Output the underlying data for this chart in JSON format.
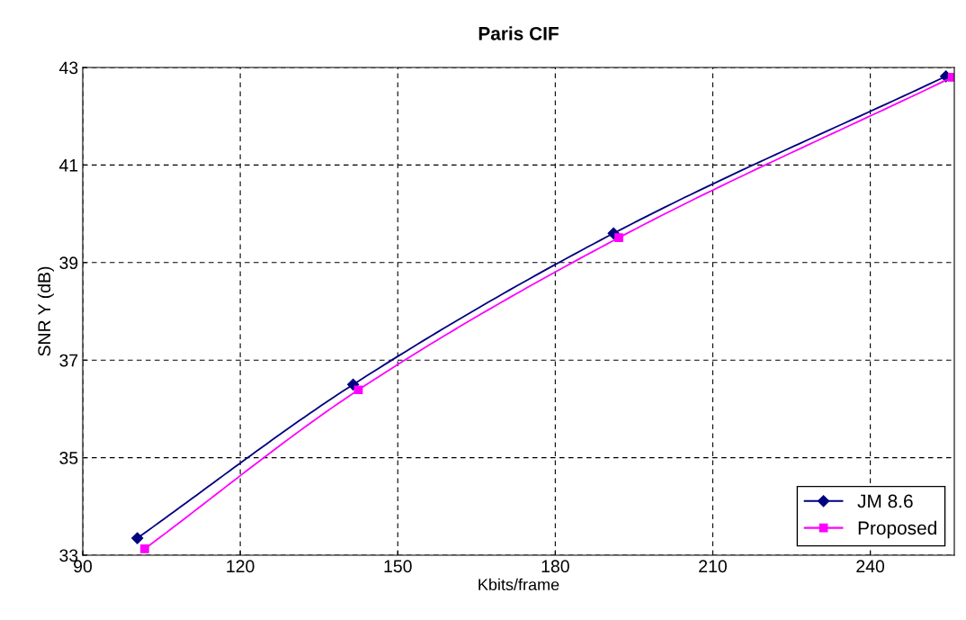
{
  "chart_data": {
    "type": "line",
    "title": "Paris CIF",
    "xlabel": "Kbits/frame",
    "ylabel": "SNR Y (dB)",
    "series": [
      {
        "name": "JM 8.6",
        "color": "#000080",
        "marker": "diamond",
        "x": [
          100.4,
          141.5,
          191.1,
          254.4
        ],
        "values": [
          33.35,
          36.5,
          39.6,
          42.82
        ]
      },
      {
        "name": "Proposed",
        "color": "#ff00ff",
        "marker": "square",
        "x": [
          101.8,
          142.5,
          192.1,
          255.6
        ],
        "values": [
          33.13,
          36.39,
          39.51,
          42.8
        ]
      }
    ],
    "xlim": [
      90,
      256
    ],
    "xticks": [
      90,
      120,
      150,
      180,
      210,
      240
    ],
    "ylim": [
      33,
      43
    ],
    "yticks": [
      33,
      35,
      37,
      39,
      41,
      43
    ],
    "grid": true,
    "legend": "bottom right",
    "line_style": "solid"
  }
}
